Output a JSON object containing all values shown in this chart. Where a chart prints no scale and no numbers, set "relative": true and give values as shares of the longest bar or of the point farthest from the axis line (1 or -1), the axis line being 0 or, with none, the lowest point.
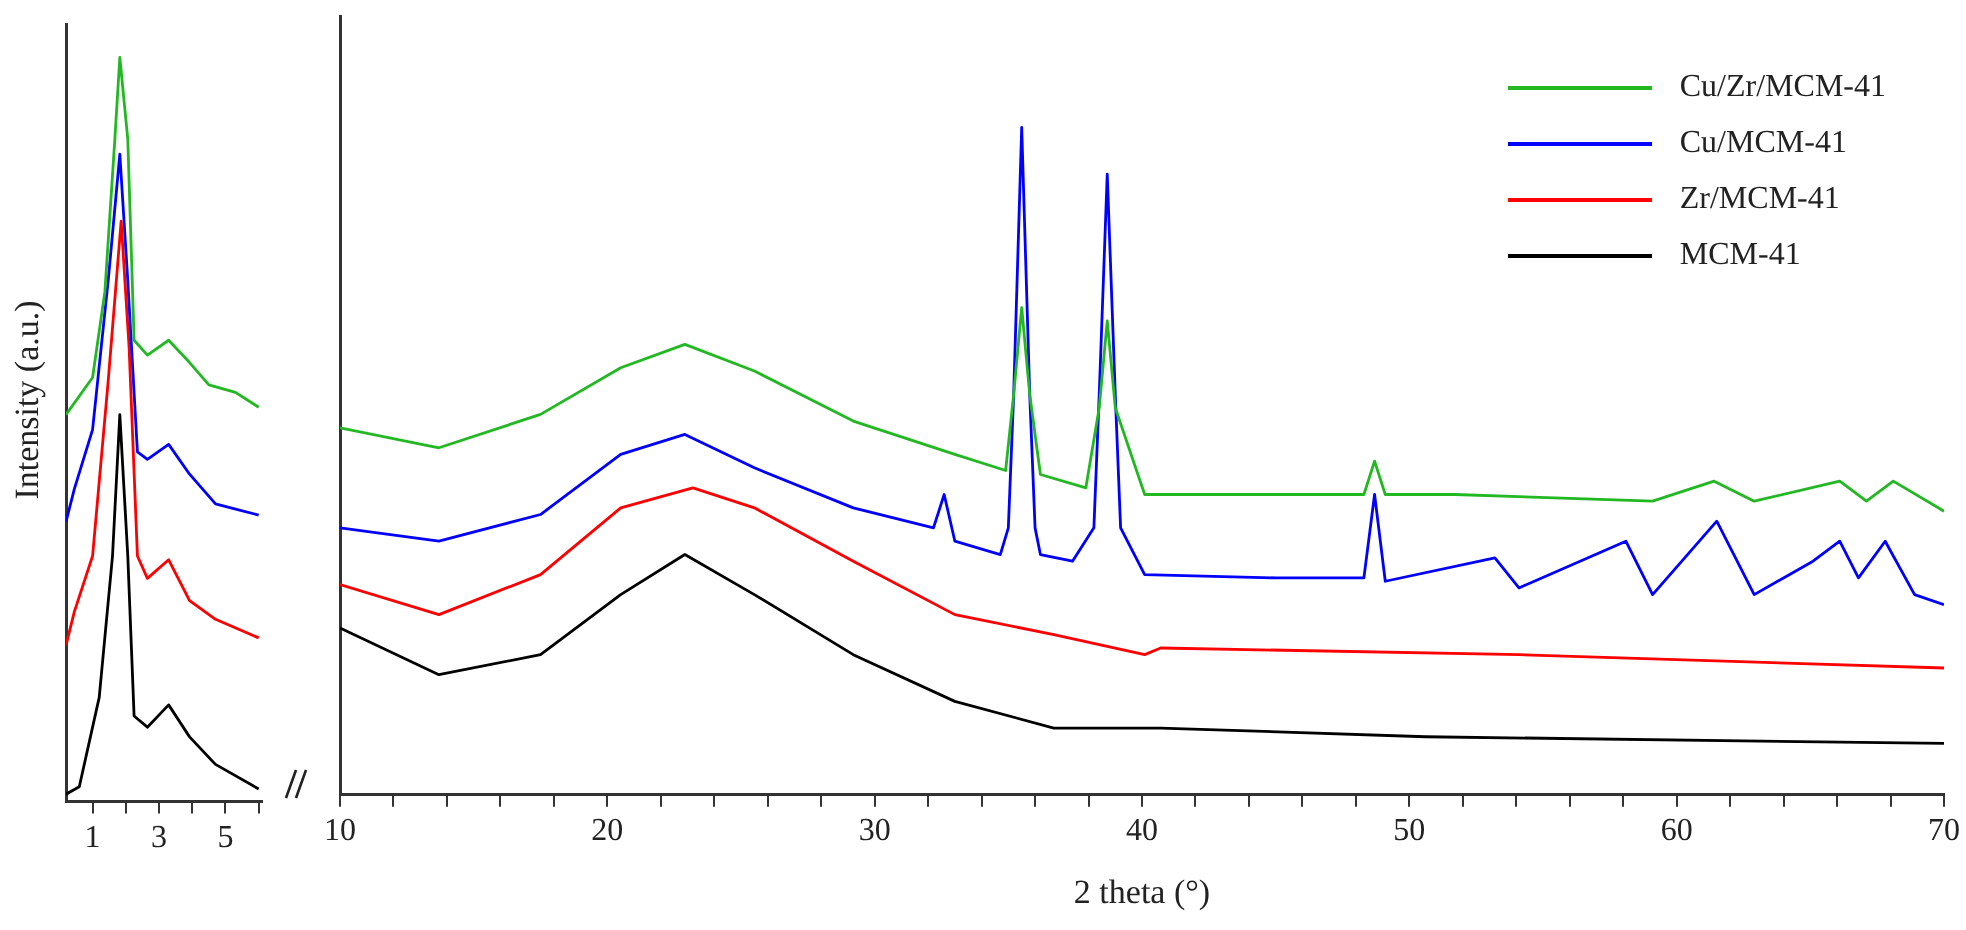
{
  "chart_data": [
    {
      "type": "line",
      "relative": true,
      "ylabel": "Intensity (a.u.)",
      "xlim": [
        0.2,
        6.1
      ],
      "xticks": [
        1,
        {
          "value": 2,
          "label": null
        },
        3,
        {
          "value": 4,
          "label": null
        },
        5,
        {
          "value": 6,
          "label": null
        }
      ],
      "series": [
        {
          "color": "#22b822",
          "x": [
            0.2,
            1.0,
            1.37,
            1.67,
            1.82,
            2.06,
            2.25,
            2.65,
            3.29,
            3.92,
            4.5,
            5.3,
            6.0
          ],
          "values": [
            0.52,
            0.57,
            0.685,
            0.89,
            1.0,
            0.89,
            0.62,
            0.6,
            0.62,
            0.59,
            0.56,
            0.55,
            0.53
          ]
        },
        {
          "color": "#0000ff",
          "x": [
            0.2,
            0.45,
            1.0,
            1.47,
            1.82,
            2.06,
            2.35,
            2.65,
            3.29,
            3.92,
            4.7,
            6.0
          ],
          "values": [
            0.376,
            0.42,
            0.5,
            0.7,
            0.87,
            0.7,
            0.47,
            0.46,
            0.48,
            0.44,
            0.4,
            0.385
          ]
        },
        {
          "color": "#ff0000",
          "x": [
            0.2,
            0.45,
            1.0,
            1.47,
            1.86,
            2.1,
            2.35,
            2.65,
            3.29,
            3.92,
            4.7,
            6.0
          ],
          "values": [
            0.21,
            0.255,
            0.33,
            0.565,
            0.78,
            0.61,
            0.33,
            0.3,
            0.325,
            0.27,
            0.245,
            0.22
          ]
        },
        {
          "color": "#000000",
          "x": [
            0.2,
            0.6,
            1.2,
            1.6,
            1.82,
            2.06,
            2.25,
            2.65,
            3.29,
            3.92,
            4.7,
            6.0
          ],
          "values": [
            0.01,
            0.02,
            0.14,
            0.33,
            0.52,
            0.33,
            0.115,
            0.1,
            0.13,
            0.087,
            0.05,
            0.017
          ]
        }
      ]
    },
    {
      "type": "line",
      "relative": true,
      "xlabel": "2 theta (°)",
      "xlim": [
        10,
        70
      ],
      "legend": "top right",
      "xticks": [
        10,
        {
          "value": 12,
          "label": null
        },
        {
          "value": 14,
          "label": null
        },
        {
          "value": 16,
          "label": null
        },
        {
          "value": 18,
          "label": null
        },
        20,
        {
          "value": 22,
          "label": null
        },
        {
          "value": 24,
          "label": null
        },
        {
          "value": 26,
          "label": null
        },
        {
          "value": 28,
          "label": null
        },
        30,
        {
          "value": 32,
          "label": null
        },
        {
          "value": 34,
          "label": null
        },
        {
          "value": 36,
          "label": null
        },
        {
          "value": 38,
          "label": null
        },
        40,
        {
          "value": 42,
          "label": null
        },
        {
          "value": 44,
          "label": null
        },
        {
          "value": 46,
          "label": null
        },
        {
          "value": 48,
          "label": null
        },
        50,
        {
          "value": 52,
          "label": null
        },
        {
          "value": 54,
          "label": null
        },
        {
          "value": 56,
          "label": null
        },
        {
          "value": 58,
          "label": null
        },
        60,
        {
          "value": 62,
          "label": null
        },
        {
          "value": 64,
          "label": null
        },
        {
          "value": 66,
          "label": null
        },
        {
          "value": 68,
          "label": null
        },
        70
      ],
      "series": [
        {
          "name": "Cu/Zr/MCM-41",
          "color": "#22b822",
          "x": [
            10,
            13.7,
            17.5,
            20.5,
            22.9,
            25.5,
            29.2,
            33.0,
            34.9,
            35.2,
            35.5,
            35.8,
            36.2,
            37.9,
            38.4,
            38.7,
            39.0,
            40.1,
            45,
            48.3,
            48.7,
            49.1,
            51.7,
            59.1,
            61.4,
            62.9,
            66.1,
            67.1,
            68.1,
            70
          ],
          "values": [
            0.55,
            0.52,
            0.57,
            0.64,
            0.675,
            0.635,
            0.56,
            0.51,
            0.486,
            0.6,
            0.73,
            0.6,
            0.48,
            0.46,
            0.58,
            0.71,
            0.58,
            0.45,
            0.45,
            0.45,
            0.5,
            0.45,
            0.45,
            0.44,
            0.47,
            0.44,
            0.47,
            0.44,
            0.47,
            0.425
          ]
        },
        {
          "name": "Cu/MCM-41",
          "color": "#0000ff",
          "x": [
            10,
            13.7,
            17.5,
            20.5,
            22.9,
            25.5,
            29.2,
            32.2,
            32.6,
            33.0,
            34.7,
            35.0,
            35.2,
            35.5,
            35.8,
            36.0,
            36.2,
            37.4,
            38.2,
            38.4,
            38.7,
            39.0,
            39.2,
            40.1,
            45,
            48.3,
            48.7,
            49.1,
            53.2,
            54.1,
            58.1,
            59.1,
            61.5,
            62.9,
            65.1,
            66.1,
            66.8,
            67.8,
            68.9,
            70
          ],
          "values": [
            0.4,
            0.38,
            0.42,
            0.51,
            0.54,
            0.49,
            0.43,
            0.4,
            0.45,
            0.38,
            0.36,
            0.4,
            0.6,
            1.0,
            0.6,
            0.4,
            0.36,
            0.35,
            0.4,
            0.6,
            0.93,
            0.6,
            0.4,
            0.33,
            0.325,
            0.325,
            0.45,
            0.32,
            0.355,
            0.31,
            0.38,
            0.3,
            0.41,
            0.3,
            0.35,
            0.38,
            0.325,
            0.38,
            0.3,
            0.285
          ]
        },
        {
          "name": "Zr/MCM-41",
          "color": "#ff0000",
          "x": [
            10,
            13.7,
            17.5,
            20.5,
            23.2,
            25.5,
            29.2,
            33.0,
            36.7,
            40.1,
            40.7,
            54.1,
            70
          ],
          "values": [
            0.315,
            0.27,
            0.33,
            0.43,
            0.46,
            0.43,
            0.35,
            0.27,
            0.24,
            0.21,
            0.22,
            0.21,
            0.19
          ]
        },
        {
          "name": "MCM-41",
          "color": "#000000",
          "x": [
            10,
            13.7,
            17.5,
            20.5,
            22.9,
            25.5,
            29.2,
            33.0,
            36.7,
            40.1,
            40.7,
            50.6,
            70
          ],
          "values": [
            0.25,
            0.18,
            0.21,
            0.3,
            0.36,
            0.3,
            0.21,
            0.14,
            0.1,
            0.1,
            0.1,
            0.087,
            0.077
          ]
        }
      ]
    }
  ]
}
